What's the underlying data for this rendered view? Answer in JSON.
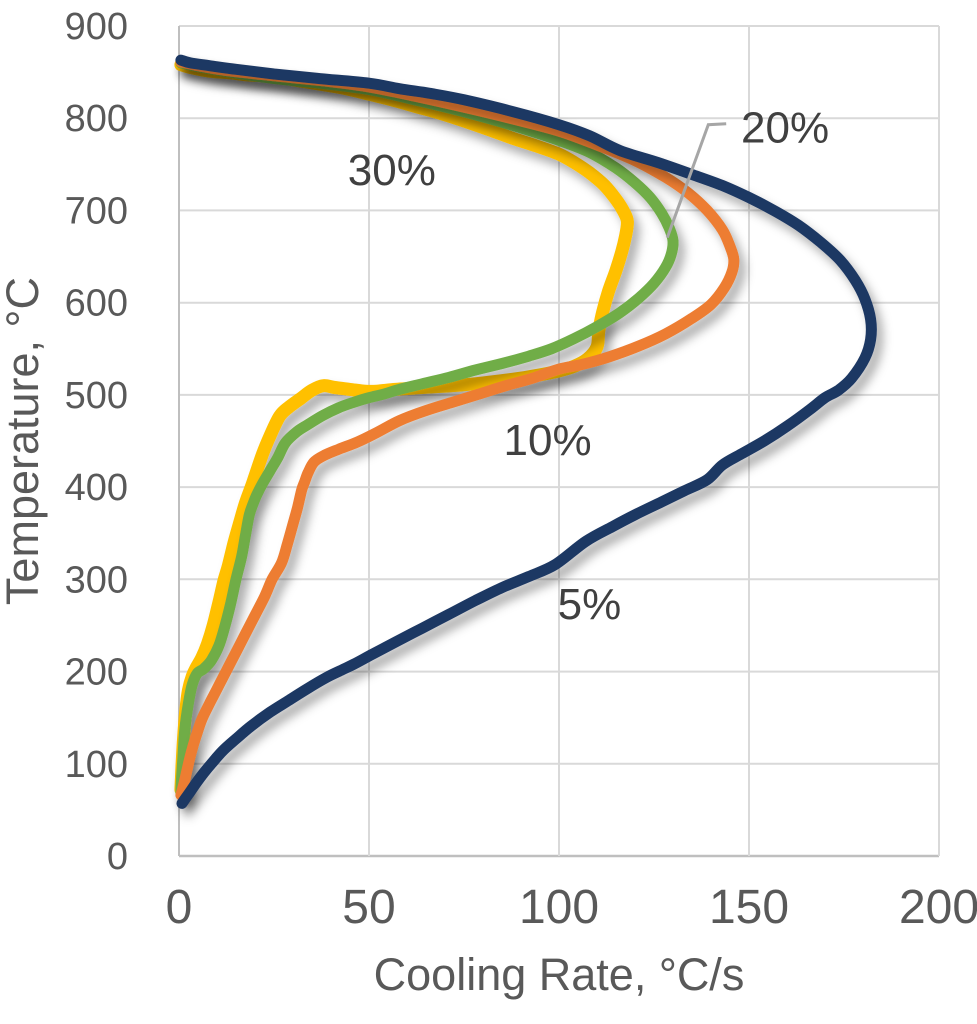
{
  "chart_data": {
    "type": "line",
    "title": "",
    "xlabel": "Cooling Rate, °C/s",
    "ylabel": "Temperature, °C",
    "xlim": [
      0,
      200
    ],
    "ylim": [
      0,
      900
    ],
    "x_ticks": [
      0,
      50,
      100,
      150,
      200
    ],
    "y_ticks": [
      0,
      100,
      200,
      300,
      400,
      500,
      600,
      700,
      800,
      900
    ],
    "grid": true,
    "legend_position": "none",
    "theme": {
      "background": "#FFFFFF",
      "gridline_color": "#D9D9D9",
      "axis_line_color": "#BFBFBF",
      "tick_label_color": "#595959",
      "axis_title_color": "#595959",
      "annotation_color": "#404040",
      "leader_line_color": "#A6A6A6",
      "shadow_color": "#000000"
    },
    "series": [
      {
        "name": "30%",
        "color": "#FFC000",
        "stroke_width": 13,
        "points": [
          [
            0.5,
            858
          ],
          [
            3,
            855
          ],
          [
            8,
            851
          ],
          [
            14,
            849
          ],
          [
            18,
            847
          ],
          [
            25,
            845
          ],
          [
            31,
            841
          ],
          [
            37,
            837
          ],
          [
            44,
            832
          ],
          [
            50,
            826
          ],
          [
            56,
            820
          ],
          [
            62,
            813
          ],
          [
            69,
            805
          ],
          [
            75,
            797
          ],
          [
            82,
            787
          ],
          [
            88,
            778
          ],
          [
            94,
            770
          ],
          [
            100,
            761
          ],
          [
            104,
            752
          ],
          [
            108,
            741
          ],
          [
            112,
            727
          ],
          [
            115,
            712
          ],
          [
            117,
            699
          ],
          [
            118,
            688
          ],
          [
            117.5,
            672
          ],
          [
            116.5,
            655
          ],
          [
            115,
            635
          ],
          [
            113,
            612
          ],
          [
            111.5,
            590
          ],
          [
            110.5,
            570
          ],
          [
            110,
            552
          ],
          [
            107.5,
            539
          ],
          [
            104,
            531
          ],
          [
            100,
            526
          ],
          [
            94,
            521
          ],
          [
            88,
            517
          ],
          [
            80,
            513
          ],
          [
            72,
            510
          ],
          [
            64,
            508
          ],
          [
            57,
            506
          ],
          [
            52,
            504
          ],
          [
            49,
            504
          ],
          [
            45,
            506
          ],
          [
            41,
            508
          ],
          [
            38,
            510
          ],
          [
            35,
            505
          ],
          [
            32,
            496
          ],
          [
            29,
            487
          ],
          [
            26.5,
            477
          ],
          [
            24,
            456
          ],
          [
            22,
            436
          ],
          [
            20,
            412
          ],
          [
            19,
            400
          ],
          [
            17.5,
            383
          ],
          [
            16,
            362
          ],
          [
            14.5,
            340
          ],
          [
            13,
            315
          ],
          [
            11.8,
            298
          ],
          [
            10.5,
            275
          ],
          [
            9,
            250
          ],
          [
            7.5,
            230
          ],
          [
            6,
            215
          ],
          [
            4.5,
            204
          ],
          [
            3.5,
            195
          ],
          [
            2.5,
            180
          ],
          [
            1.8,
            158
          ],
          [
            1.2,
            128
          ],
          [
            0.8,
            98
          ],
          [
            0.5,
            72
          ]
        ]
      },
      {
        "name": "20%",
        "color": "#70AD47",
        "stroke_width": 11,
        "points": [
          [
            0.5,
            860
          ],
          [
            5,
            856
          ],
          [
            12,
            851
          ],
          [
            25,
            843
          ],
          [
            37,
            838
          ],
          [
            50,
            831
          ],
          [
            62,
            820
          ],
          [
            75,
            807
          ],
          [
            88,
            792
          ],
          [
            100,
            776
          ],
          [
            108,
            763
          ],
          [
            115,
            746
          ],
          [
            120,
            730
          ],
          [
            124,
            714
          ],
          [
            127,
            697
          ],
          [
            129,
            681
          ],
          [
            130,
            667
          ],
          [
            129.5,
            652
          ],
          [
            128,
            638
          ],
          [
            125,
            621
          ],
          [
            121,
            605
          ],
          [
            116,
            589
          ],
          [
            110,
            574
          ],
          [
            104,
            561
          ],
          [
            98,
            550
          ],
          [
            92,
            542
          ],
          [
            85,
            534
          ],
          [
            78,
            527
          ],
          [
            71,
            519
          ],
          [
            64,
            512
          ],
          [
            58,
            506
          ],
          [
            54,
            501
          ],
          [
            50,
            497
          ],
          [
            46,
            492
          ],
          [
            42,
            486
          ],
          [
            38,
            478
          ],
          [
            34,
            468
          ],
          [
            31,
            460
          ],
          [
            28,
            448
          ],
          [
            26,
            432
          ],
          [
            24,
            418
          ],
          [
            22,
            404
          ],
          [
            20.5,
            392
          ],
          [
            19.5,
            382
          ],
          [
            18.5,
            370
          ],
          [
            17.5,
            348
          ],
          [
            16.5,
            325
          ],
          [
            15,
            300
          ],
          [
            13.5,
            272
          ],
          [
            12,
            248
          ],
          [
            10.5,
            228
          ],
          [
            8.5,
            212
          ],
          [
            6.5,
            203
          ],
          [
            4.8,
            198
          ],
          [
            3.5,
            186
          ],
          [
            2.5,
            166
          ],
          [
            1.5,
            136
          ],
          [
            1,
            105
          ],
          [
            0.6,
            80
          ],
          [
            0.5,
            68
          ]
        ]
      },
      {
        "name": "10%",
        "color": "#ED7D31",
        "stroke_width": 11,
        "points": [
          [
            0.5,
            861
          ],
          [
            5,
            857
          ],
          [
            12,
            852
          ],
          [
            25,
            846
          ],
          [
            37,
            841
          ],
          [
            50,
            834
          ],
          [
            62,
            824
          ],
          [
            75,
            812
          ],
          [
            88,
            799
          ],
          [
            100,
            786
          ],
          [
            110,
            771
          ],
          [
            120,
            754
          ],
          [
            128,
            736
          ],
          [
            134,
            719
          ],
          [
            139,
            700
          ],
          [
            143,
            679
          ],
          [
            145,
            661
          ],
          [
            146,
            647
          ],
          [
            145.5,
            633
          ],
          [
            143.5,
            616
          ],
          [
            140,
            598
          ],
          [
            135,
            583
          ],
          [
            128,
            566
          ],
          [
            121,
            553
          ],
          [
            113,
            541
          ],
          [
            106,
            533
          ],
          [
            100,
            528
          ],
          [
            93,
            518
          ],
          [
            86,
            510
          ],
          [
            79,
            501
          ],
          [
            72,
            492
          ],
          [
            65,
            483
          ],
          [
            58,
            472
          ],
          [
            52,
            459
          ],
          [
            47,
            449
          ],
          [
            42,
            441
          ],
          [
            38,
            434
          ],
          [
            35.5,
            427
          ],
          [
            34,
            416
          ],
          [
            33,
            405
          ],
          [
            32.3,
            397
          ],
          [
            31.2,
            378
          ],
          [
            30,
            360
          ],
          [
            28.5,
            338
          ],
          [
            27,
            318
          ],
          [
            24.5,
            300
          ],
          [
            22.5,
            281
          ],
          [
            20,
            261
          ],
          [
            17.5,
            241
          ],
          [
            15,
            221
          ],
          [
            12.5,
            201
          ],
          [
            10,
            181
          ],
          [
            8,
            165
          ],
          [
            6,
            148
          ],
          [
            4.5,
            130
          ],
          [
            3.2,
            112
          ],
          [
            2.2,
            95
          ],
          [
            1.4,
            80
          ],
          [
            0.5,
            66
          ]
        ]
      },
      {
        "name": "5%",
        "color": "#1F3864",
        "stroke_width": 11,
        "points": [
          [
            0.5,
            863
          ],
          [
            3,
            860
          ],
          [
            8,
            857
          ],
          [
            15,
            853
          ],
          [
            25,
            848
          ],
          [
            37,
            843
          ],
          [
            50,
            838
          ],
          [
            58,
            832
          ],
          [
            66,
            827
          ],
          [
            75,
            820
          ],
          [
            88,
            807
          ],
          [
            100,
            793
          ],
          [
            108,
            781
          ],
          [
            116,
            765
          ],
          [
            126,
            752
          ],
          [
            135,
            739
          ],
          [
            143,
            727
          ],
          [
            150,
            714
          ],
          [
            157,
            699
          ],
          [
            163,
            684
          ],
          [
            169,
            665
          ],
          [
            174,
            646
          ],
          [
            178,
            624
          ],
          [
            180.5,
            604
          ],
          [
            182,
            582
          ],
          [
            182,
            560
          ],
          [
            180.5,
            540
          ],
          [
            177,
            518
          ],
          [
            173.5,
            505
          ],
          [
            170,
            497
          ],
          [
            166,
            484
          ],
          [
            160,
            466
          ],
          [
            154,
            450
          ],
          [
            148,
            436
          ],
          [
            143,
            424
          ],
          [
            139,
            408
          ],
          [
            133,
            396
          ],
          [
            127,
            384
          ],
          [
            120,
            370
          ],
          [
            114,
            357
          ],
          [
            107,
            341
          ],
          [
            99,
            316
          ],
          [
            92,
            303
          ],
          [
            85,
            291
          ],
          [
            78,
            277
          ],
          [
            71,
            262
          ],
          [
            64,
            247
          ],
          [
            57,
            232
          ],
          [
            51,
            219
          ],
          [
            46,
            208
          ],
          [
            43,
            202
          ],
          [
            39,
            194
          ],
          [
            34,
            182
          ],
          [
            29,
            169
          ],
          [
            24,
            156
          ],
          [
            19,
            141
          ],
          [
            15,
            127
          ],
          [
            11.5,
            114
          ],
          [
            8.5,
            100
          ],
          [
            6.5,
            90
          ],
          [
            4.5,
            79
          ],
          [
            3,
            70
          ],
          [
            1.8,
            63
          ],
          [
            0.8,
            57
          ]
        ]
      }
    ],
    "annotations": [
      {
        "text": "30%",
        "x": 56,
        "y": 744
      },
      {
        "text": "20%",
        "x": 159.5,
        "y": 790,
        "leader": [
          [
            144,
            794
          ],
          [
            139.3,
            793
          ],
          [
            128.5,
            670.5
          ]
        ]
      },
      {
        "text": "10%",
        "x": 97,
        "y": 451
      },
      {
        "text": "5%",
        "x": 108,
        "y": 273
      }
    ]
  }
}
